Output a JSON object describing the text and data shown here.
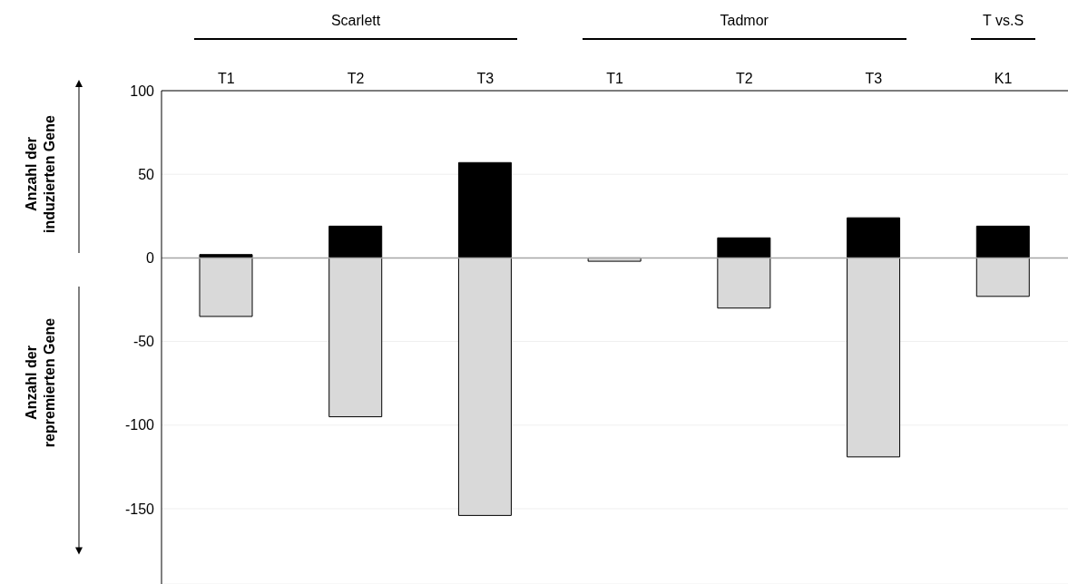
{
  "chart_data": {
    "type": "bar",
    "stacked": true,
    "categories": [
      "T1",
      "T2",
      "T3",
      "T1",
      "T2",
      "T3",
      "K1"
    ],
    "series": [
      {
        "color": "#000000",
        "values": [
          2,
          19,
          57,
          0,
          12,
          24,
          19
        ]
      },
      {
        "color": "#d9d9d9",
        "values": [
          -35,
          -95,
          -154,
          -2,
          -30,
          -119,
          -23
        ]
      }
    ],
    "ylim": [
      -195,
      100
    ],
    "yticks": [
      -150,
      -100,
      -50,
      0,
      50,
      100
    ],
    "grid": "y",
    "ref_lines": [
      {
        "axis": "y",
        "value": 0,
        "color": "#a6a6a6"
      }
    ],
    "annotations": [
      "Scarlett",
      "Tadmor",
      "T vs.S",
      "Anzahl der induzierten Gene",
      "Anzahl der repremierten Gene"
    ]
  }
}
